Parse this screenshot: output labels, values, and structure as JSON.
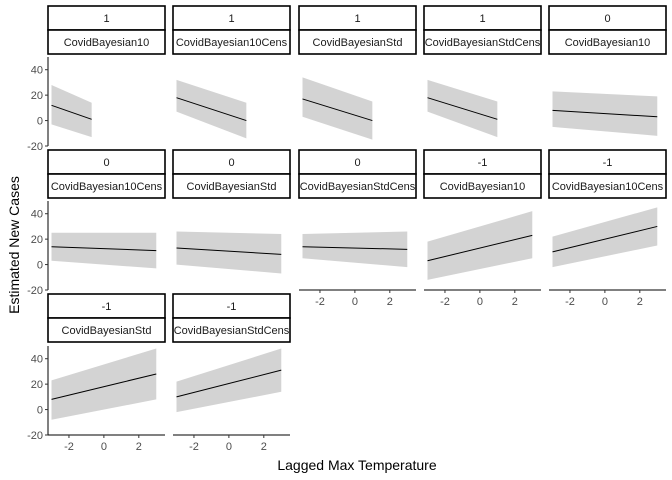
{
  "chart_data": {
    "type": "line",
    "layout": "faceted grid, 5 columns",
    "xlabel": "Lagged Max Temperature",
    "ylabel": "Estimated New Cases",
    "xlim": [
      -3.2,
      3.5
    ],
    "ylim": [
      -20,
      50
    ],
    "x_ticks": [
      -2,
      0,
      2
    ],
    "y_ticks": [
      -20,
      0,
      20,
      40
    ],
    "x_tick_labels": [
      "-2",
      "0",
      "2"
    ],
    "y_tick_labels": [
      "-20",
      "0",
      "20",
      "40"
    ],
    "ribbon_color": "#d3d3d3",
    "line_color": "#000000",
    "grid": false,
    "panels": [
      {
        "strip_top": "1",
        "strip_bottom": "CovidBayesian10",
        "x": [
          -3.0,
          -0.7
        ],
        "fit": [
          12,
          1
        ],
        "lower": [
          -3,
          -13
        ],
        "upper": [
          28,
          14
        ]
      },
      {
        "strip_top": "1",
        "strip_bottom": "CovidBayesian10Cens",
        "x": [
          -3.0,
          1.0
        ],
        "fit": [
          18,
          0
        ],
        "lower": [
          7,
          -14
        ],
        "upper": [
          32,
          14
        ]
      },
      {
        "strip_top": "1",
        "strip_bottom": "CovidBayesianStd",
        "x": [
          -3.0,
          1.0
        ],
        "fit": [
          17,
          0
        ],
        "lower": [
          3,
          -15
        ],
        "upper": [
          34,
          15
        ]
      },
      {
        "strip_top": "1",
        "strip_bottom": "CovidBayesianStdCens",
        "x": [
          -3.0,
          1.0
        ],
        "fit": [
          18,
          1
        ],
        "lower": [
          7,
          -13
        ],
        "upper": [
          32,
          15
        ]
      },
      {
        "strip_top": "0",
        "strip_bottom": "CovidBayesian10",
        "x": [
          -3.0,
          3.0
        ],
        "fit": [
          8,
          3
        ],
        "lower": [
          -5,
          -12
        ],
        "upper": [
          23,
          19
        ]
      },
      {
        "strip_top": "0",
        "strip_bottom": "CovidBayesian10Cens",
        "x": [
          -3.0,
          3.0
        ],
        "fit": [
          14,
          11
        ],
        "lower": [
          3,
          -3
        ],
        "upper": [
          25,
          25
        ]
      },
      {
        "strip_top": "0",
        "strip_bottom": "CovidBayesianStd",
        "x": [
          -3.0,
          3.0
        ],
        "fit": [
          13,
          8
        ],
        "lower": [
          0,
          -7
        ],
        "upper": [
          26,
          24
        ]
      },
      {
        "strip_top": "0",
        "strip_bottom": "CovidBayesianStdCens",
        "x": [
          -3.0,
          3.0
        ],
        "fit": [
          14,
          12
        ],
        "lower": [
          5,
          -2
        ],
        "upper": [
          24,
          26
        ]
      },
      {
        "strip_top": "-1",
        "strip_bottom": "CovidBayesian10",
        "x": [
          -3.0,
          3.0
        ],
        "fit": [
          3,
          23
        ],
        "lower": [
          -12,
          5
        ],
        "upper": [
          18,
          42
        ]
      },
      {
        "strip_top": "-1",
        "strip_bottom": "CovidBayesian10Cens",
        "x": [
          -3.0,
          3.0
        ],
        "fit": [
          10,
          30
        ],
        "lower": [
          -2,
          15
        ],
        "upper": [
          22,
          45
        ]
      },
      {
        "strip_top": "-1",
        "strip_bottom": "CovidBayesianStd",
        "x": [
          -3.0,
          3.0
        ],
        "fit": [
          8,
          28
        ],
        "lower": [
          -8,
          8
        ],
        "upper": [
          23,
          48
        ]
      },
      {
        "strip_top": "-1",
        "strip_bottom": "CovidBayesianStdCens",
        "x": [
          -3.0,
          3.0
        ],
        "fit": [
          10,
          31
        ],
        "lower": [
          -2,
          14
        ],
        "upper": [
          22,
          48
        ]
      }
    ]
  }
}
